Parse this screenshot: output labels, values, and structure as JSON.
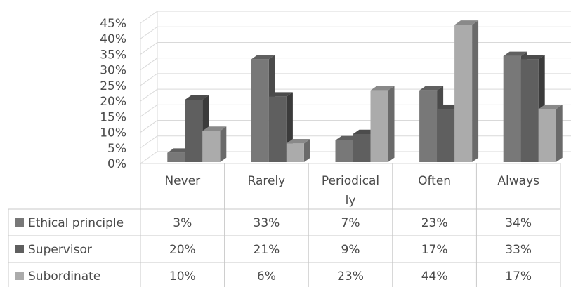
{
  "chart_data": {
    "type": "bar",
    "style": "3d-clustered-column-with-data-table",
    "categories": [
      "Never",
      "Rarely",
      "Periodically",
      "Often",
      "Always"
    ],
    "category_labels_wrapped": [
      [
        "Never"
      ],
      [
        "Rarely"
      ],
      [
        "Periodical",
        "ly"
      ],
      [
        "Often"
      ],
      [
        "Always"
      ]
    ],
    "series": [
      {
        "name": "Ethical principle",
        "values": [
          3,
          33,
          7,
          23,
          34
        ],
        "labels": [
          "3%",
          "33%",
          "7%",
          "23%",
          "34%"
        ],
        "color": "#787878"
      },
      {
        "name": "Supervisor",
        "values": [
          20,
          21,
          9,
          17,
          33
        ],
        "labels": [
          "20%",
          "21%",
          "9%",
          "17%",
          "33%"
        ],
        "color": "#5f5f5f"
      },
      {
        "name": "Subordinate",
        "values": [
          10,
          6,
          23,
          44,
          17
        ],
        "labels": [
          "10%",
          "6%",
          "23%",
          "44%",
          "17%"
        ],
        "color": "#ababab"
      }
    ],
    "y_ticks": [
      "0%",
      "5%",
      "10%",
      "15%",
      "20%",
      "25%",
      "30%",
      "35%",
      "40%",
      "45%"
    ],
    "ylim": [
      0,
      45
    ],
    "y_unit": "%",
    "grid": true,
    "legend": "data-table-left"
  }
}
